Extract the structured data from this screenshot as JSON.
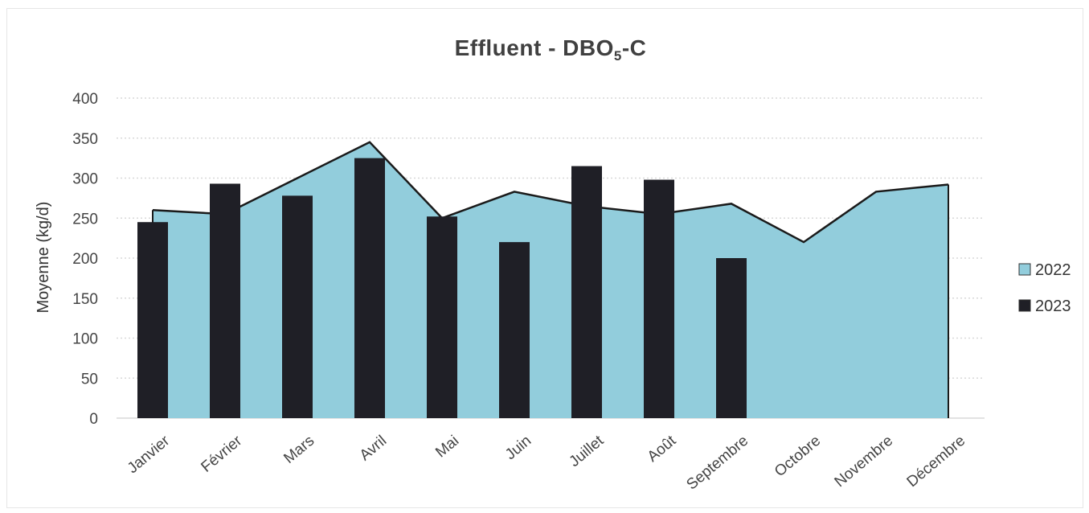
{
  "chart_data": {
    "type": "bar",
    "title_main": "Effluent - DBO",
    "title_sub": "5",
    "title_suffix": "-C",
    "ylabel": "Moyenne (kg/d)",
    "xlabel": "",
    "ylim": [
      0,
      400
    ],
    "yticks": [
      0,
      50,
      100,
      150,
      200,
      250,
      300,
      350,
      400
    ],
    "grid": true,
    "legend_position": "right",
    "categories": [
      "Janvier",
      "Février",
      "Mars",
      "Avril",
      "Mai",
      "Juin",
      "Juillet",
      "Août",
      "Septembre",
      "Octobre",
      "Novembre",
      "Décembre"
    ],
    "series": [
      {
        "name": "2022",
        "type": "area",
        "color": "#92cddc",
        "values": [
          260,
          255,
          300,
          345,
          250,
          283,
          265,
          255,
          268,
          220,
          283,
          292
        ]
      },
      {
        "name": "2023",
        "type": "bar",
        "color": "#1f1f26",
        "values": [
          245,
          293,
          278,
          325,
          252,
          220,
          315,
          298,
          200,
          null,
          null,
          null
        ]
      }
    ]
  }
}
